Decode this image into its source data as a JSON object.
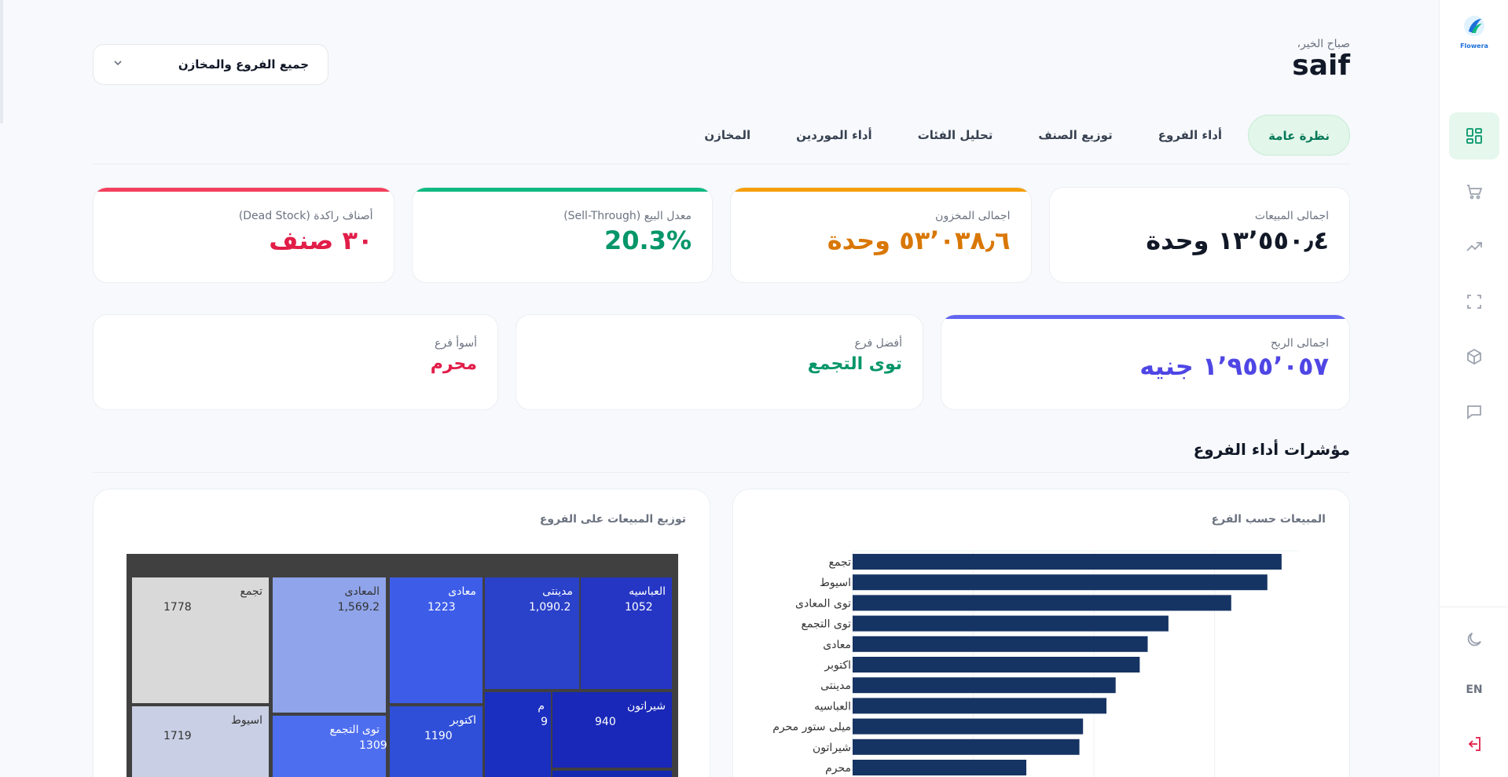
{
  "sidebar": {
    "logo_text": "Flowera",
    "items": [
      {
        "name": "dashboard-icon",
        "active": true
      },
      {
        "name": "cart-icon"
      },
      {
        "name": "trend-icon"
      },
      {
        "name": "scan-icon"
      },
      {
        "name": "box-icon"
      },
      {
        "name": "chat-icon"
      }
    ],
    "lang": "EN"
  },
  "header": {
    "greeting": "صباح الخير،",
    "user": "saif",
    "branch_filter": "جميع الفروع والمخازن"
  },
  "tabs": [
    "نظرة عامة",
    "أداء الفروع",
    "توزيع الصنف",
    "تحليل الفئات",
    "أداء الموردين",
    "المخازن"
  ],
  "kpis": [
    {
      "label": "اجمالى المبيعات",
      "value": "١٣٬٥٥٠٫٤ وحدة",
      "color": "#111827",
      "bar": ""
    },
    {
      "label": "اجمالى المخزون",
      "value": "٥٣٬٠٣٨٫٦ وحدة",
      "color": "#d97706",
      "bar": "#f59e0b"
    },
    {
      "label": "معدل البيع (Sell-Through)",
      "value": "20.3%",
      "color": "#059669",
      "bar": "#10b981"
    },
    {
      "label": "أصناف راكدة (Dead Stock)",
      "value": "٣٠ صنف",
      "color": "#e11d48",
      "bar": "#f43f5e"
    }
  ],
  "kpis2": [
    {
      "label": "اجمالى الربح",
      "value": "١٬٩٥٥٬٠٥٧ جنيه",
      "color": "#4f46e5",
      "bar": "#6366f1"
    },
    {
      "label": "أفضل فرع",
      "value": "توى التجمع",
      "color": "#059669",
      "bar": ""
    },
    {
      "label": "أسوأ فرع",
      "value": "محرم",
      "color": "#e11d48",
      "bar": ""
    }
  ],
  "section_title": "مؤشرات أداء الفروع",
  "bar_panel_title": "المبيعات حسب الفرع",
  "treemap_panel_title": "توزيع المبيعات على الفروع",
  "chart_data": [
    {
      "type": "bar",
      "orientation": "horizontal",
      "title": "المبيعات حسب الفرع",
      "categories": [
        "تجمع",
        "اسيوط",
        "توى المعادى",
        "توى التجمع",
        "معادى",
        "اكتوبر",
        "مدينتى",
        "العباسيه",
        "ميلى ستور محرم",
        "شيراتون",
        "محرم"
      ],
      "values": [
        1778,
        1719,
        1569.2,
        1309,
        1223,
        1190,
        1090.2,
        1052,
        955,
        940,
        720
      ],
      "color": "#163463",
      "xlim": [
        0,
        1850
      ]
    },
    {
      "type": "treemap",
      "title": "توزيع المبيعات على الفروع",
      "tiles": [
        {
          "label": "تجمع",
          "value": "1778",
          "color": "#d9d9d9"
        },
        {
          "label": "المعادى",
          "value": "1,569.2",
          "color": "#8fa4ea"
        },
        {
          "label": "معادى",
          "value": "1223",
          "color": "#3d5de9"
        },
        {
          "label": "مدينتى",
          "value": "1,090.2",
          "color": "#2a41c9"
        },
        {
          "label": "العباسيه",
          "value": "1052",
          "color": "#2536c4"
        },
        {
          "label": "اسيوط",
          "value": "1719",
          "color": "#c9cfe4"
        },
        {
          "label": "توى التجمع",
          "value": "1309",
          "color": "#4e6ef0"
        },
        {
          "label": "اكتوبر",
          "value": "1190",
          "color": "#2f4fd8"
        },
        {
          "label": "م",
          "value": "9",
          "color": "#1a2fc0"
        },
        {
          "label": "شيراتون",
          "value": "940",
          "color": "#1928b8"
        }
      ]
    }
  ]
}
